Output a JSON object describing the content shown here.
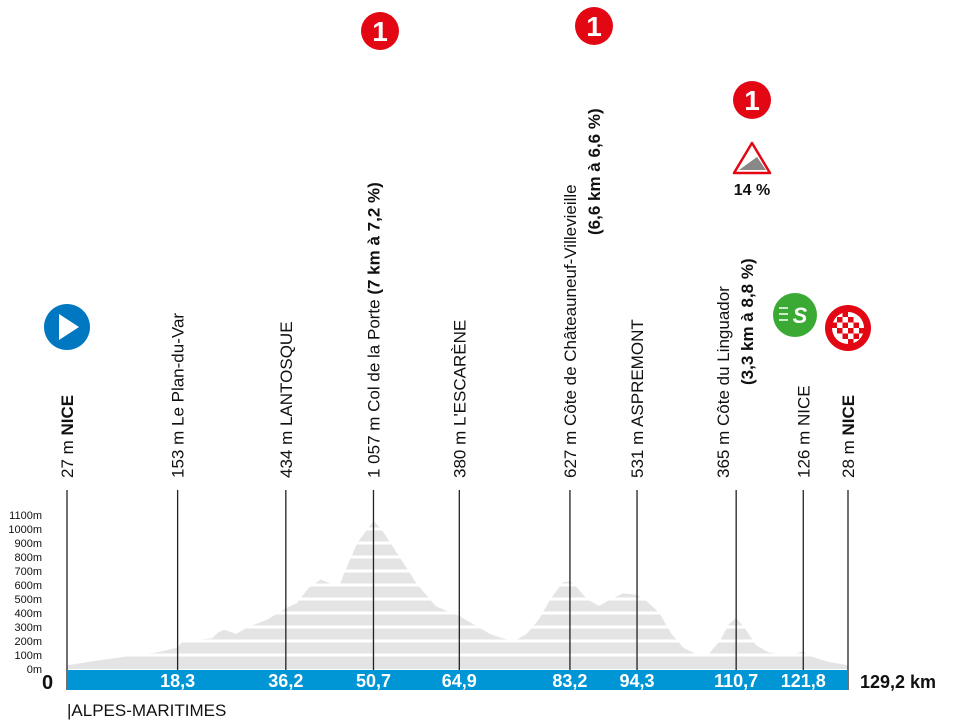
{
  "chart_data": {
    "type": "area",
    "title": "",
    "xlabel": "",
    "ylabel": "",
    "xlim": [
      0,
      129.2
    ],
    "ylim": [
      0,
      1100
    ],
    "y_ticks": [
      "0m",
      "100m",
      "200m",
      "300m",
      "400m",
      "500m",
      "600m",
      "700m",
      "800m",
      "900m",
      "1000m",
      "1100m"
    ],
    "grid": "horizontal white bands every 100m",
    "profile": {
      "x": [
        0,
        5,
        10,
        15,
        18.3,
        19,
        20,
        24,
        25,
        26,
        28,
        30,
        33,
        36.2,
        38,
        40,
        42,
        43,
        45,
        46,
        48,
        50.7,
        52,
        55,
        58,
        61,
        63,
        64.9,
        66,
        68,
        70,
        72,
        74,
        76,
        78,
        80,
        82,
        83.2,
        84,
        86,
        88,
        90,
        92,
        94.3,
        96,
        98,
        100,
        102,
        104,
        106,
        108,
        109.5,
        110.7,
        112,
        114,
        116,
        119,
        120.5,
        121.8,
        123,
        126,
        129.2
      ],
      "y": [
        27,
        60,
        90,
        120,
        153,
        190,
        200,
        220,
        260,
        280,
        250,
        300,
        350,
        434,
        470,
        580,
        640,
        620,
        590,
        700,
        900,
        1057,
        1000,
        800,
        600,
        450,
        410,
        380,
        350,
        300,
        250,
        220,
        200,
        250,
        350,
        500,
        620,
        627,
        600,
        500,
        450,
        500,
        540,
        531,
        480,
        400,
        250,
        150,
        110,
        100,
        200,
        320,
        365,
        300,
        170,
        120,
        100,
        110,
        126,
        90,
        50,
        28
      ]
    },
    "start_label": "0",
    "distance_label": "129,2 km",
    "colors": {
      "profile": "#e4e4e4",
      "bar": "#0096d6",
      "climb": "#e30613",
      "sprint": "#3aaa35",
      "start": "#0078c1"
    }
  },
  "waypoints": [
    {
      "km": 0,
      "km_label": "",
      "alt": "27 m",
      "name": "NICE",
      "bold_name": true,
      "icon": "start-icon"
    },
    {
      "km": 18.3,
      "km_label": "18,3",
      "alt": "153 m",
      "name": "Le Plan-du-Var",
      "bold_name": false
    },
    {
      "km": 36.2,
      "km_label": "36,2",
      "alt": "434 m",
      "name": "LANTOSQUE",
      "bold_name": false
    },
    {
      "km": 50.7,
      "km_label": "50,7",
      "alt": "1 057 m",
      "name": "Col de la Porte",
      "detail": "(7 km à 7,2 %)",
      "bold_name": false,
      "icon": "climb-category-icon",
      "category": "1"
    },
    {
      "km": 64.9,
      "km_label": "64,9",
      "alt": "380 m",
      "name": "L'ESCARÈNE",
      "bold_name": false
    },
    {
      "km": 83.2,
      "km_label": "83,2",
      "alt": "627 m",
      "name": "Côte de Châteauneuf-Villevieille",
      "detail": "(6,6 km à 6,6 %)",
      "bold_name": false,
      "icon": "climb-category-icon",
      "category": "1"
    },
    {
      "km": 94.3,
      "km_label": "94,3",
      "alt": "531 m",
      "name": "ASPREMONT",
      "bold_name": false
    },
    {
      "km": 110.7,
      "km_label": "110,7",
      "alt": "365 m",
      "name": "Côte du Linguador",
      "detail": "(3,3 km à 8,8 %)",
      "bold_name": false,
      "icon": "climb-category-icon",
      "category": "1",
      "max_gradient": "14 %"
    },
    {
      "km": 121.8,
      "km_label": "121,8",
      "alt": "126 m",
      "name": "NICE",
      "bold_name": false,
      "icon": "sprint-icon",
      "sprint_letter": "S"
    },
    {
      "km": 129.2,
      "km_label": "",
      "alt": "28 m",
      "name": "NICE",
      "bold_name": true,
      "icon": "finish-icon"
    }
  ],
  "region": "|ALPES-MARITIMES"
}
